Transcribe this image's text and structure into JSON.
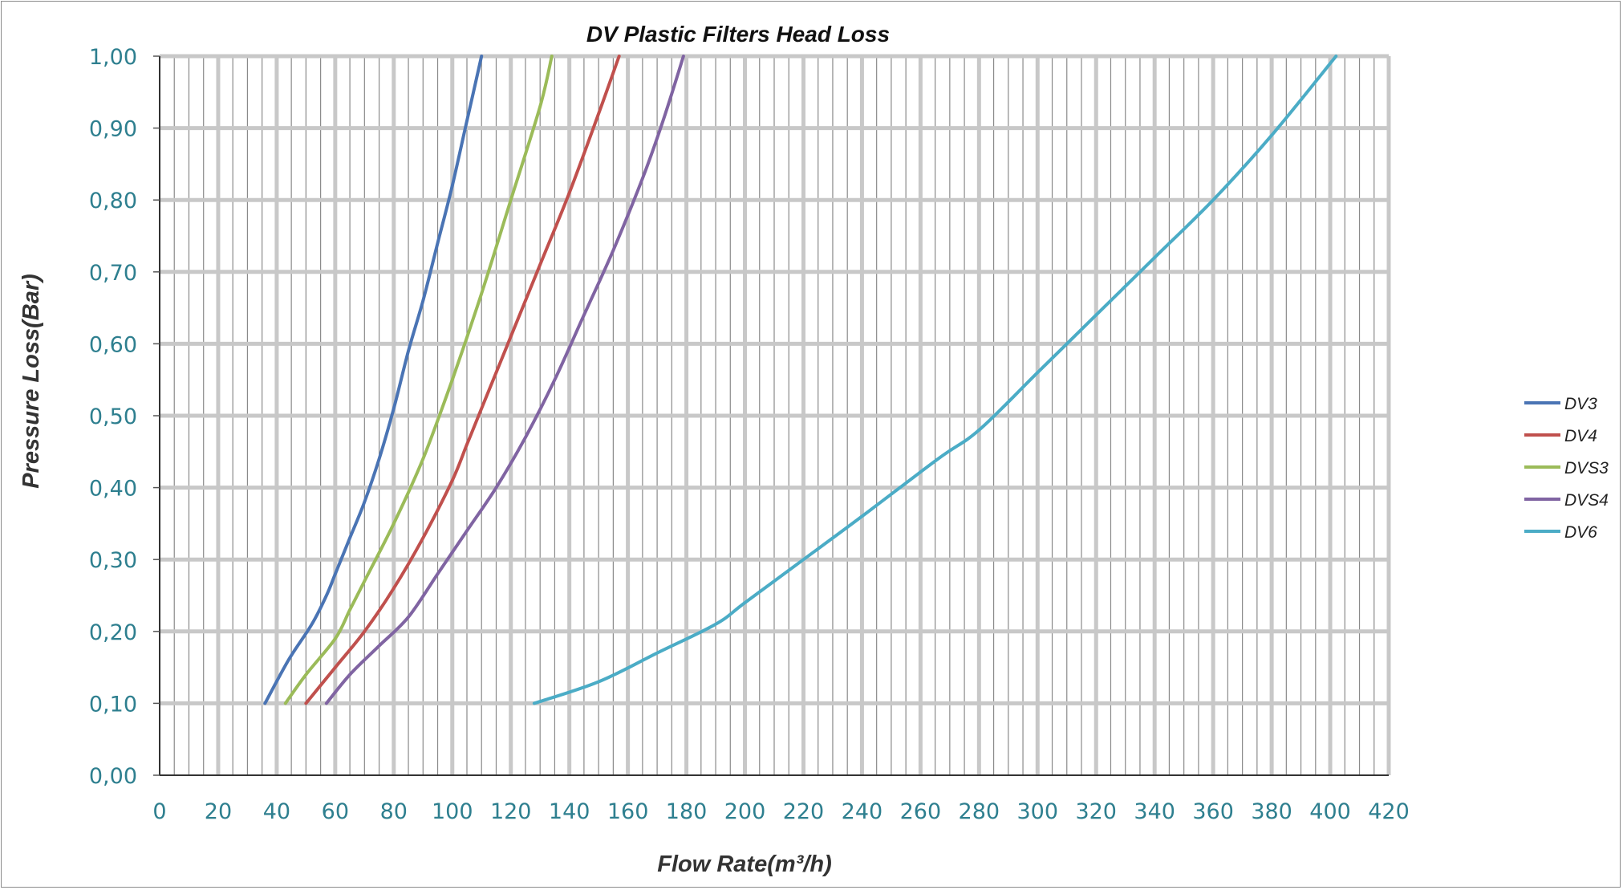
{
  "chart_data": {
    "type": "line",
    "title": "DV Plastic Filters Head Loss",
    "xlabel": "Flow Rate(m³/h)",
    "ylabel": "Pressure Loss(Bar)",
    "xlim": [
      0,
      420
    ],
    "ylim": [
      0,
      1.0
    ],
    "x_major_step": 20,
    "x_minor_step": 5,
    "y_major_step": 0.1,
    "x_tick_labels": [
      "0",
      "20",
      "40",
      "60",
      "80",
      "100",
      "120",
      "140",
      "160",
      "180",
      "200",
      "220",
      "240",
      "260",
      "280",
      "300",
      "320",
      "340",
      "360",
      "380",
      "400",
      "420"
    ],
    "y_tick_labels": [
      "0,00",
      "0,10",
      "0,20",
      "0,30",
      "0,40",
      "0,50",
      "0,60",
      "0,70",
      "0,80",
      "0,90",
      "1,00"
    ],
    "grid": true,
    "legend_position": "right",
    "series": [
      {
        "name": "DV3",
        "color": "#4a74b4",
        "points": [
          [
            36,
            0.1
          ],
          [
            44,
            0.16
          ],
          [
            52,
            0.21
          ],
          [
            57,
            0.25
          ],
          [
            60,
            0.28
          ],
          [
            65,
            0.33
          ],
          [
            70,
            0.38
          ],
          [
            75,
            0.44
          ],
          [
            80,
            0.51
          ],
          [
            85,
            0.59
          ],
          [
            90,
            0.66
          ],
          [
            95,
            0.74
          ],
          [
            100,
            0.82
          ],
          [
            105,
            0.91
          ],
          [
            110,
            1.0
          ]
        ]
      },
      {
        "name": "DV4",
        "color": "#c0504d",
        "points": [
          [
            50,
            0.1
          ],
          [
            60,
            0.15
          ],
          [
            70,
            0.2
          ],
          [
            80,
            0.26
          ],
          [
            90,
            0.33
          ],
          [
            100,
            0.41
          ],
          [
            105,
            0.46
          ],
          [
            110,
            0.51
          ],
          [
            120,
            0.61
          ],
          [
            130,
            0.71
          ],
          [
            140,
            0.81
          ],
          [
            150,
            0.92
          ],
          [
            157,
            1.0
          ]
        ]
      },
      {
        "name": "DVS3",
        "color": "#9bbb59",
        "points": [
          [
            43,
            0.1
          ],
          [
            50,
            0.14
          ],
          [
            60,
            0.19
          ],
          [
            65,
            0.23
          ],
          [
            70,
            0.27
          ],
          [
            80,
            0.35
          ],
          [
            90,
            0.44
          ],
          [
            100,
            0.55
          ],
          [
            110,
            0.67
          ],
          [
            120,
            0.8
          ],
          [
            130,
            0.93
          ],
          [
            134,
            1.0
          ]
        ]
      },
      {
        "name": "DVS4",
        "color": "#8064a2",
        "points": [
          [
            57,
            0.1
          ],
          [
            65,
            0.14
          ],
          [
            75,
            0.18
          ],
          [
            85,
            0.22
          ],
          [
            95,
            0.28
          ],
          [
            105,
            0.34
          ],
          [
            115,
            0.4
          ],
          [
            125,
            0.47
          ],
          [
            135,
            0.55
          ],
          [
            145,
            0.64
          ],
          [
            155,
            0.73
          ],
          [
            165,
            0.83
          ],
          [
            172,
            0.91
          ],
          [
            179,
            1.0
          ]
        ]
      },
      {
        "name": "DV6",
        "color": "#4bacc6",
        "points": [
          [
            128,
            0.1
          ],
          [
            150,
            0.13
          ],
          [
            170,
            0.17
          ],
          [
            190,
            0.21
          ],
          [
            200,
            0.24
          ],
          [
            220,
            0.3
          ],
          [
            240,
            0.36
          ],
          [
            266,
            0.44
          ],
          [
            280,
            0.48
          ],
          [
            300,
            0.56
          ],
          [
            320,
            0.64
          ],
          [
            340,
            0.72
          ],
          [
            360,
            0.8
          ],
          [
            380,
            0.89
          ],
          [
            402,
            1.0
          ]
        ]
      }
    ]
  }
}
